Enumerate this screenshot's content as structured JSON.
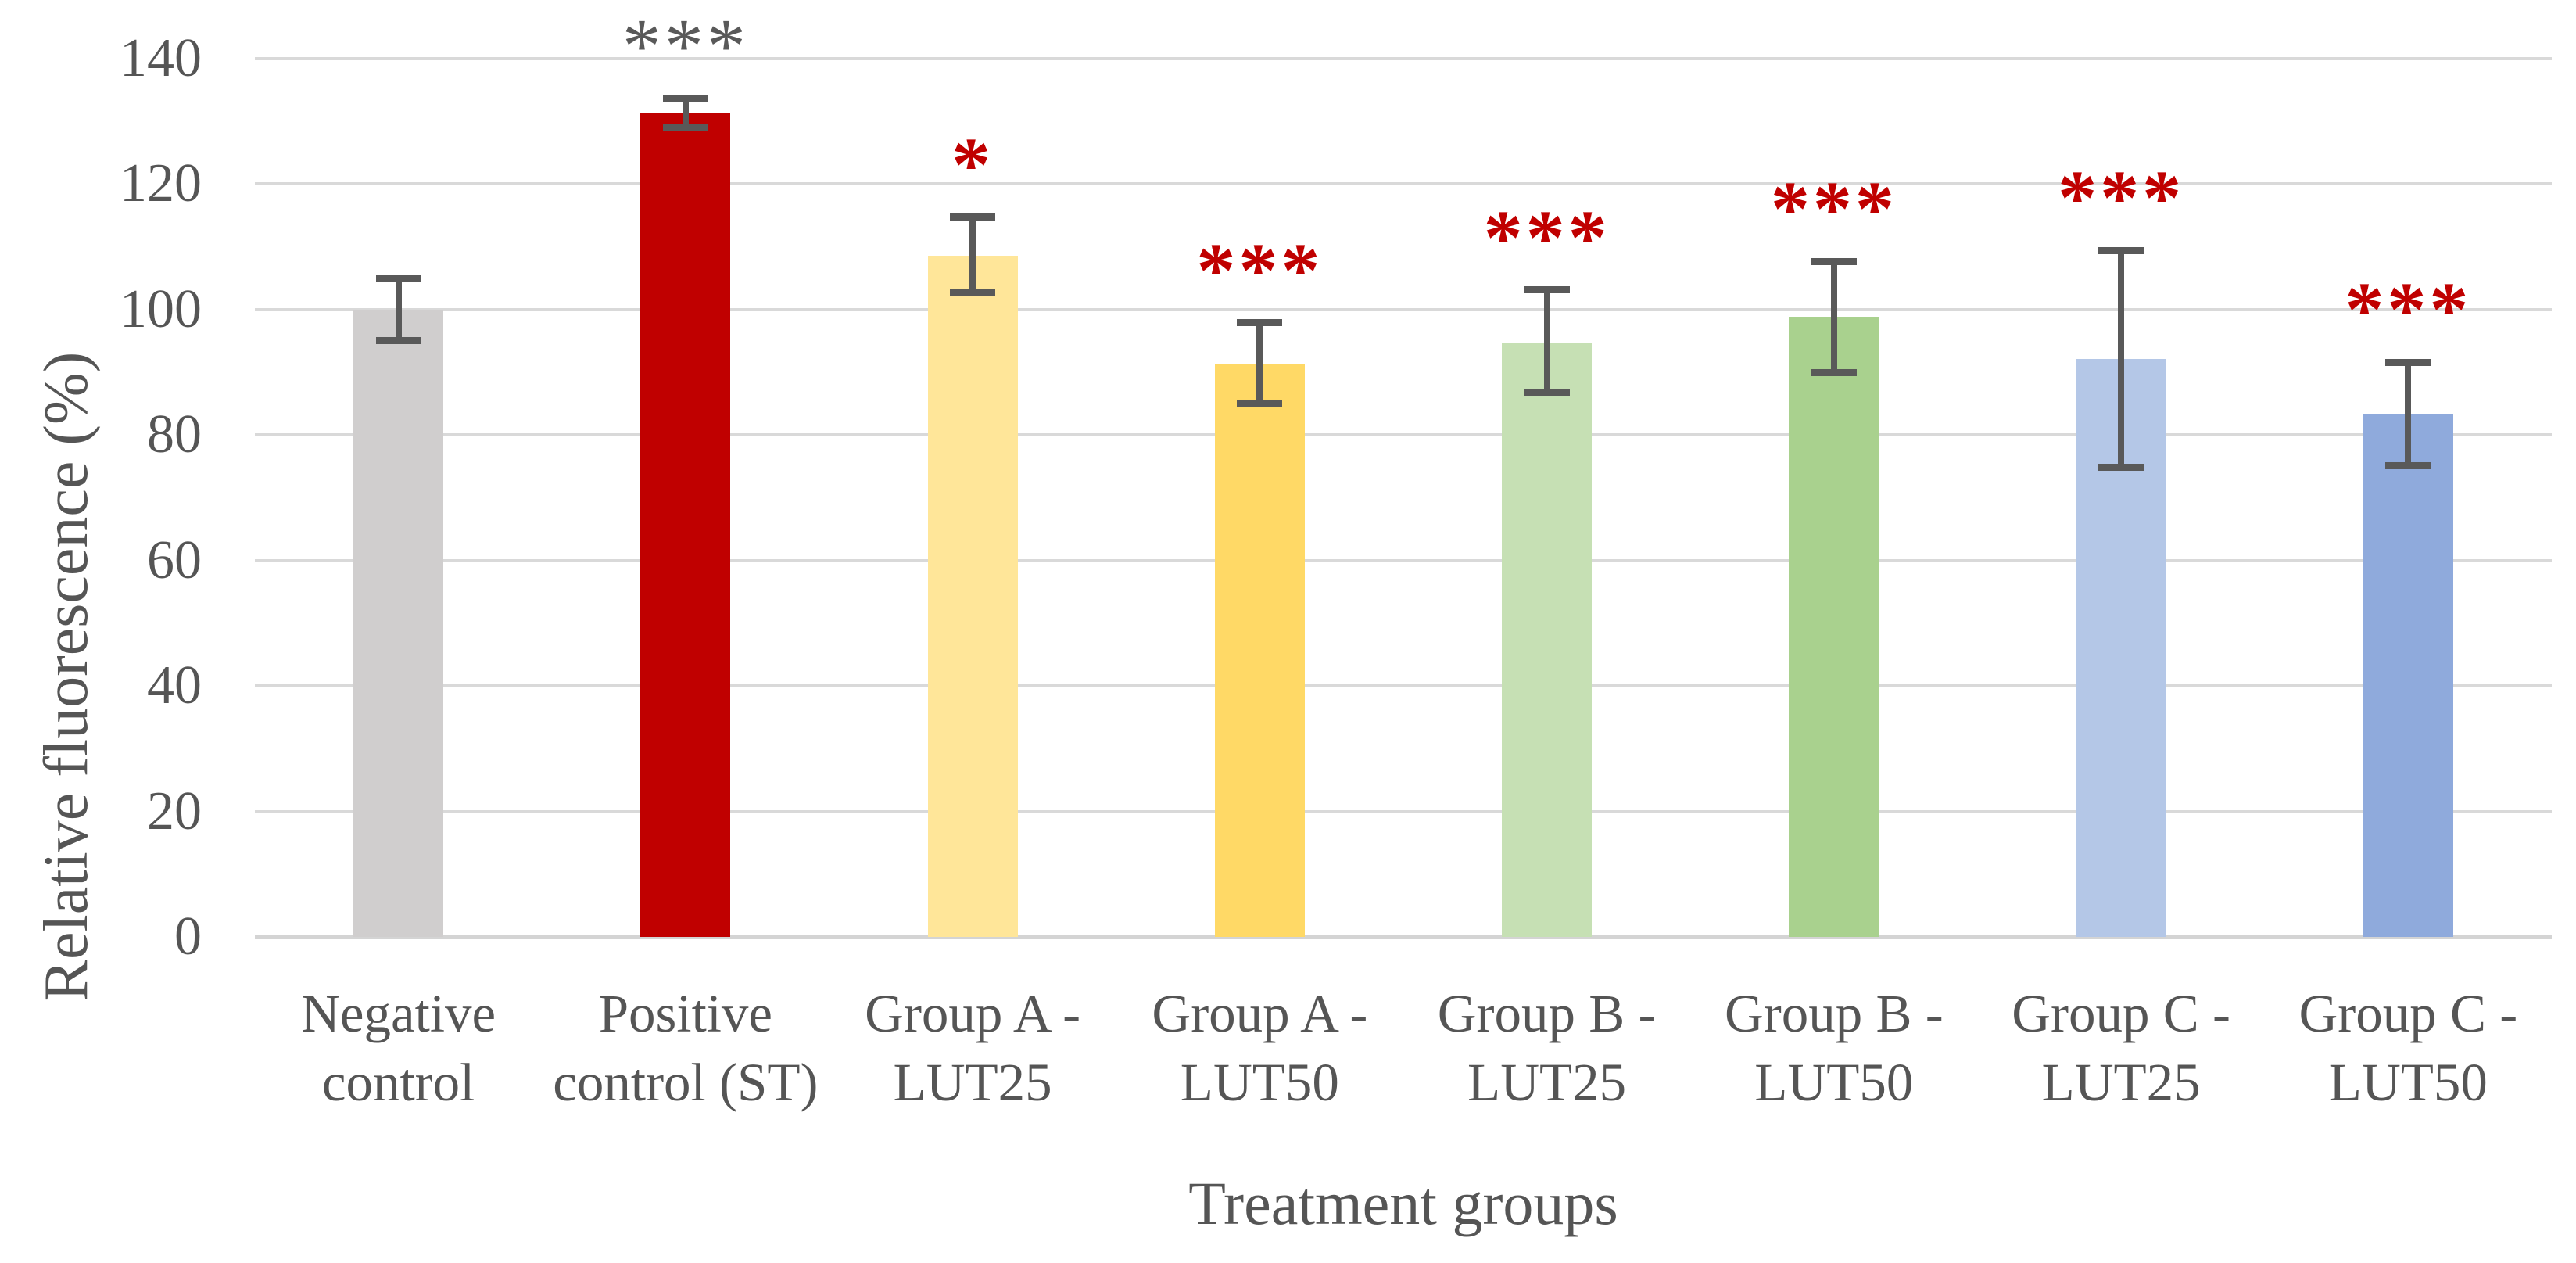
{
  "colors": {
    "background": "#ffffff",
    "grid": "#d9d9d9",
    "axis_text": "#555555",
    "error_bar": "#595959",
    "significance_red": "#c00000",
    "significance_gray": "#595959"
  },
  "chart_data": {
    "type": "bar",
    "title": "",
    "xlabel": "Treatment groups",
    "ylabel": "Relative fluorescence (%)",
    "ylim": [
      0,
      140
    ],
    "yticks": [
      0,
      20,
      40,
      60,
      80,
      100,
      120,
      140
    ],
    "grid": true,
    "legend": "none",
    "categories": [
      "Negative control",
      "Positive control (ST)",
      "Group A - LUT25",
      "Group A - LUT50",
      "Group B - LUT25",
      "Group B - LUT50",
      "Group C - LUT25",
      "Group C - LUT50"
    ],
    "bars": [
      {
        "label": "Negative control",
        "label_lines": [
          "Negative",
          "control"
        ],
        "value": 100.0,
        "error_plus": 4.9,
        "error_minus": 4.9,
        "color": "#d0cece",
        "sig": "",
        "sig_color": "",
        "sig_bold": false
      },
      {
        "label": "Positive control (ST)",
        "label_lines": [
          "Positive",
          "control (ST)"
        ],
        "value": 131.4,
        "error_plus": 2.2,
        "error_minus": 2.3,
        "color": "#c00000",
        "sig": "***",
        "sig_color": "#595959",
        "sig_bold": false
      },
      {
        "label": "Group A - LUT25",
        "label_lines": [
          "Group A -",
          "LUT25"
        ],
        "value": 108.6,
        "error_plus": 6.1,
        "error_minus": 5.9,
        "color": "#ffe699",
        "sig": "*",
        "sig_color": "#c00000",
        "sig_bold": true
      },
      {
        "label": "Group A - LUT50",
        "label_lines": [
          "Group A -",
          "LUT50"
        ],
        "value": 91.4,
        "error_plus": 6.5,
        "error_minus": 6.3,
        "color": "#ffd966",
        "sig": "***",
        "sig_color": "#c00000",
        "sig_bold": true
      },
      {
        "label": "Group B - LUT25",
        "label_lines": [
          "Group B -",
          "LUT25"
        ],
        "value": 94.8,
        "error_plus": 8.3,
        "error_minus": 8.0,
        "color": "#c6e0b4",
        "sig": "***",
        "sig_color": "#c00000",
        "sig_bold": true
      },
      {
        "label": "Group B - LUT50",
        "label_lines": [
          "Group B -",
          "LUT50"
        ],
        "value": 98.9,
        "error_plus": 8.8,
        "error_minus": 8.9,
        "color": "#a9d18e",
        "sig": "***",
        "sig_color": "#c00000",
        "sig_bold": true
      },
      {
        "label": "Group C - LUT25",
        "label_lines": [
          "Group C -",
          "LUT25"
        ],
        "value": 92.1,
        "error_plus": 17.3,
        "error_minus": 17.3,
        "color": "#b4c7e7",
        "sig": "***",
        "sig_color": "#c00000",
        "sig_bold": true
      },
      {
        "label": "Group C - LUT50",
        "label_lines": [
          "Group C -",
          "LUT50"
        ],
        "value": 83.4,
        "error_plus": 8.2,
        "error_minus": 8.3,
        "color": "#8faadc",
        "sig": "***",
        "sig_color": "#c00000",
        "sig_bold": true
      }
    ]
  }
}
